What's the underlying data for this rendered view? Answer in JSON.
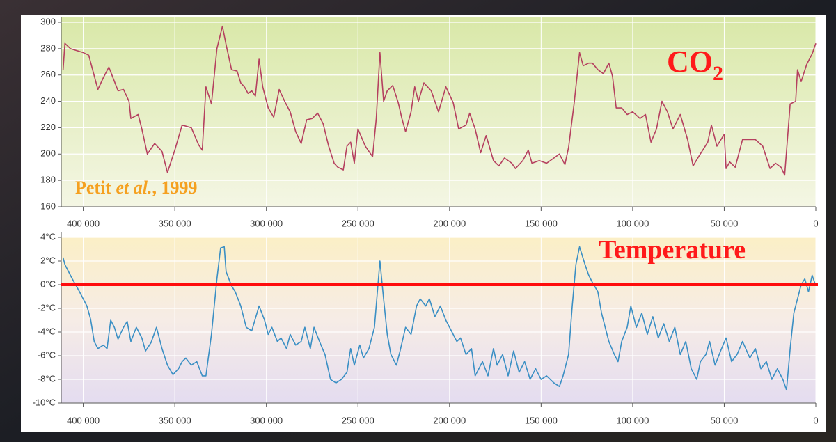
{
  "chart_data": [
    {
      "type": "line",
      "label": "CO",
      "label_subscript": "2",
      "citation": [
        "Petit ",
        "et al.",
        ", 1999"
      ],
      "x": [
        411000,
        410000,
        407000,
        400000,
        397000,
        392000,
        389000,
        386000,
        381000,
        378000,
        375000,
        374000,
        370000,
        368000,
        365000,
        361000,
        357000,
        354000,
        350000,
        346000,
        341000,
        337000,
        335000,
        333000,
        330000,
        327000,
        324000,
        322000,
        319000,
        316000,
        314000,
        312000,
        310000,
        308000,
        306000,
        304000,
        302000,
        299000,
        296000,
        293000,
        290000,
        287000,
        284000,
        281000,
        278000,
        275000,
        272000,
        269000,
        266000,
        263000,
        261000,
        258000,
        256000,
        254000,
        252000,
        250000,
        246000,
        242000,
        240000,
        238000,
        236000,
        234000,
        231000,
        228000,
        226000,
        224000,
        221000,
        219000,
        217000,
        214000,
        210000,
        206000,
        202000,
        198000,
        195000,
        191000,
        189000,
        186000,
        183000,
        180000,
        176000,
        173000,
        170000,
        166000,
        164000,
        160000,
        157000,
        155000,
        151000,
        147000,
        143000,
        140000,
        137000,
        135000,
        132000,
        129000,
        127000,
        124000,
        122000,
        119000,
        116000,
        113000,
        111000,
        109000,
        106000,
        103000,
        100000,
        96000,
        93000,
        90000,
        87000,
        84000,
        81000,
        78000,
        74000,
        70000,
        67000,
        64000,
        59000,
        57000,
        54000,
        50000,
        49000,
        47000,
        44000,
        40000,
        33000,
        29000,
        25000,
        22000,
        19000,
        17000,
        14000,
        11000,
        10000,
        8000,
        5000,
        2000,
        0
      ],
      "series": [
        {
          "color": "#b5405f",
          "values": [
            264,
            284,
            280,
            277,
            275,
            249,
            258,
            266,
            248,
            249,
            240,
            227,
            230,
            219,
            200,
            208,
            202,
            186,
            203,
            222,
            220,
            207,
            203,
            251,
            238,
            280,
            297,
            283,
            264,
            263,
            254,
            251,
            246,
            248,
            244,
            272,
            251,
            235,
            228,
            249,
            240,
            232,
            217,
            208,
            226,
            227,
            231,
            223,
            206,
            193,
            190,
            188,
            206,
            209,
            193,
            219,
            206,
            198,
            227,
            277,
            240,
            248,
            252,
            239,
            227,
            217,
            232,
            251,
            240,
            254,
            248,
            232,
            251,
            239,
            219,
            222,
            231,
            219,
            201,
            214,
            195,
            191,
            197,
            193,
            189,
            195,
            203,
            193,
            195,
            193,
            197,
            200,
            192,
            205,
            238,
            277,
            267,
            269,
            269,
            264,
            261,
            269,
            259,
            235,
            235,
            230,
            232,
            227,
            230,
            209,
            219,
            240,
            232,
            219,
            230,
            211,
            191,
            198,
            209,
            222,
            206,
            215,
            189,
            194,
            190,
            211,
            211,
            206,
            189,
            193,
            190,
            184,
            238,
            240,
            264,
            255,
            268,
            276,
            284
          ]
        }
      ],
      "xlim": [
        412000,
        0
      ],
      "ylim": [
        160,
        300
      ],
      "xticks": [
        {
          "value": 400000,
          "label": "400 000"
        },
        {
          "value": 350000,
          "label": "350 000"
        },
        {
          "value": 300000,
          "label": "300 000"
        },
        {
          "value": 250000,
          "label": "250 000"
        },
        {
          "value": 200000,
          "label": "200 000"
        },
        {
          "value": 150000,
          "label": "150 000"
        },
        {
          "value": 100000,
          "label": "100 000"
        },
        {
          "value": 50000,
          "label": "50 000"
        },
        0
      ],
      "yticks": [
        160,
        180,
        200,
        220,
        240,
        260,
        280,
        300
      ],
      "grid": true
    },
    {
      "type": "line",
      "label": "Temperature",
      "reference_line": {
        "value": 0,
        "color": "#ff0d0d"
      },
      "x": [
        411000,
        410000,
        406000,
        402000,
        398000,
        396000,
        394000,
        392000,
        389000,
        387000,
        385000,
        383000,
        381000,
        378000,
        376000,
        374000,
        371000,
        368000,
        366000,
        363000,
        360000,
        357000,
        354000,
        351000,
        348000,
        346000,
        344000,
        341000,
        338000,
        335000,
        333000,
        330000,
        327000,
        325000,
        323000,
        322000,
        319000,
        317000,
        314000,
        311000,
        308000,
        304000,
        301000,
        299000,
        297000,
        294000,
        292000,
        289000,
        287000,
        284000,
        281000,
        279000,
        276000,
        274000,
        271000,
        268000,
        265000,
        262000,
        259000,
        256000,
        254000,
        252000,
        249000,
        247000,
        244000,
        241000,
        238000,
        236000,
        234000,
        232000,
        229000,
        227000,
        224000,
        221000,
        218000,
        216000,
        213000,
        211000,
        208000,
        205000,
        202000,
        199000,
        196000,
        194000,
        191000,
        188000,
        186000,
        182000,
        179000,
        176000,
        174000,
        171000,
        168000,
        165000,
        162000,
        159000,
        156000,
        153000,
        150000,
        147000,
        143000,
        140000,
        138000,
        135000,
        133000,
        131000,
        129000,
        126000,
        124000,
        122000,
        119000,
        117000,
        115000,
        113000,
        110000,
        108000,
        106000,
        103000,
        101000,
        98000,
        95000,
        92000,
        89000,
        86000,
        83000,
        80000,
        77000,
        74000,
        71000,
        68000,
        65000,
        63000,
        60000,
        58000,
        55000,
        52000,
        49000,
        46000,
        43000,
        40000,
        36000,
        33000,
        30000,
        27000,
        24000,
        21000,
        18000,
        16000,
        14000,
        12000,
        10000,
        8000,
        6000,
        4000,
        2000,
        0
      ],
      "series": [
        {
          "color": "#3a8fc4",
          "values": [
            2.3,
            1.7,
            0.5,
            -0.6,
            -1.8,
            -2.9,
            -4.8,
            -5.4,
            -5.1,
            -5.4,
            -3.0,
            -3.6,
            -4.6,
            -3.6,
            -3.1,
            -4.8,
            -3.6,
            -4.5,
            -5.6,
            -4.9,
            -3.6,
            -5.4,
            -6.8,
            -7.6,
            -7.1,
            -6.5,
            -6.2,
            -6.8,
            -6.5,
            -7.7,
            -7.7,
            -4.2,
            0.5,
            3.1,
            3.2,
            1.1,
            -0.1,
            -0.6,
            -1.8,
            -3.6,
            -3.9,
            -1.8,
            -3.0,
            -4.2,
            -3.6,
            -4.8,
            -4.5,
            -5.4,
            -4.2,
            -5.1,
            -4.8,
            -3.6,
            -5.4,
            -3.6,
            -4.8,
            -5.9,
            -8.0,
            -8.3,
            -8.0,
            -7.4,
            -5.4,
            -6.8,
            -5.1,
            -6.2,
            -5.4,
            -3.6,
            2.0,
            -1.2,
            -4.2,
            -5.9,
            -6.8,
            -5.6,
            -3.6,
            -4.2,
            -1.8,
            -1.2,
            -1.8,
            -1.2,
            -2.7,
            -1.8,
            -3.0,
            -3.9,
            -4.8,
            -4.5,
            -5.9,
            -5.4,
            -7.7,
            -6.5,
            -7.7,
            -5.4,
            -6.8,
            -5.9,
            -7.7,
            -5.6,
            -7.4,
            -6.5,
            -8.0,
            -7.1,
            -8.0,
            -7.7,
            -8.3,
            -8.6,
            -7.7,
            -5.9,
            -1.8,
            1.7,
            3.2,
            1.7,
            0.8,
            0.2,
            -0.6,
            -2.4,
            -3.6,
            -4.8,
            -5.9,
            -6.5,
            -4.8,
            -3.6,
            -1.8,
            -3.6,
            -2.4,
            -4.2,
            -2.7,
            -4.5,
            -3.3,
            -4.8,
            -3.6,
            -5.9,
            -4.8,
            -7.1,
            -8.0,
            -6.5,
            -5.9,
            -4.8,
            -6.8,
            -5.6,
            -4.5,
            -6.5,
            -5.9,
            -4.8,
            -6.2,
            -5.4,
            -7.1,
            -6.5,
            -8.0,
            -7.1,
            -8.0,
            -8.9,
            -5.4,
            -2.4,
            -1.2,
            0.0,
            0.5,
            -0.6,
            0.8,
            -0.1
          ]
        }
      ],
      "xlim": [
        412000,
        0
      ],
      "ylim": [
        -10,
        4
      ],
      "xticks": [
        {
          "value": 400000,
          "label": "400 000"
        },
        {
          "value": 350000,
          "label": "350 000"
        },
        {
          "value": 300000,
          "label": "300 000"
        },
        {
          "value": 250000,
          "label": "250 000"
        },
        {
          "value": 200000,
          "label": "200 000"
        },
        {
          "value": 150000,
          "label": "150 000"
        },
        {
          "value": 100000,
          "label": "100 000"
        },
        {
          "value": 50000,
          "label": "50 000"
        },
        0
      ],
      "yticks": [
        {
          "value": -10,
          "label": "-10°C"
        },
        {
          "value": -8,
          "label": "-8°C"
        },
        {
          "value": -6,
          "label": "-6°C"
        },
        {
          "value": -4,
          "label": "-4°C"
        },
        {
          "value": -2,
          "label": "-2°C"
        },
        {
          "value": 0,
          "label": "0°C"
        },
        {
          "value": 2,
          "label": "2°C"
        },
        {
          "value": 4,
          "label": "4°C"
        }
      ],
      "grid": true
    }
  ]
}
